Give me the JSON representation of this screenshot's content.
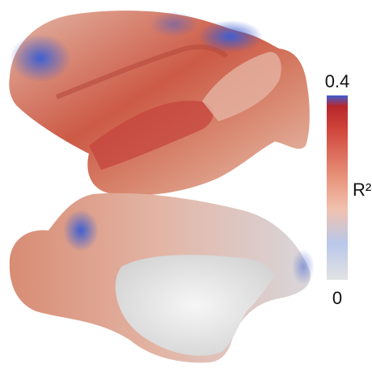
{
  "colorbar": {
    "max": "0.4",
    "label": "R²",
    "min": "0"
  }
}
